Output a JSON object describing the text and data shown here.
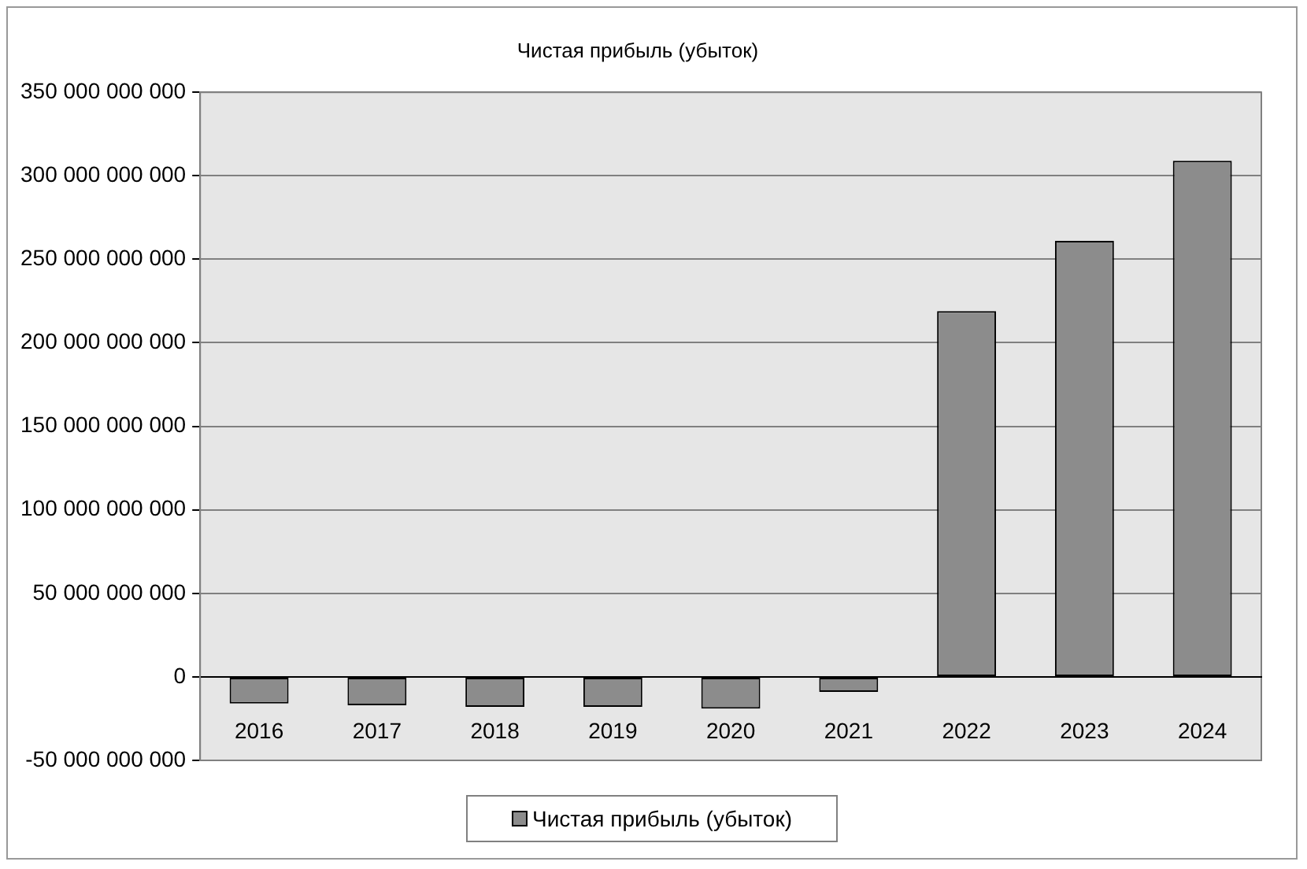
{
  "chart_data": {
    "type": "bar",
    "title": "Чистая прибыль (убыток)",
    "categories": [
      "2016",
      "2017",
      "2018",
      "2019",
      "2020",
      "2021",
      "2022",
      "2023",
      "2024"
    ],
    "series": [
      {
        "name": "Чистая прибыль (убыток)",
        "color": "#8c8c8c",
        "values": [
          -16000000000,
          -17000000000,
          -18000000000,
          -18000000000,
          -19000000000,
          -9000000000,
          219000000000,
          261000000000,
          309000000000
        ]
      }
    ],
    "ylim": [
      -50000000000,
      350000000000
    ],
    "yticks": [
      {
        "value": -50000000000,
        "label": "-50 000 000 000"
      },
      {
        "value": 0,
        "label": "0"
      },
      {
        "value": 50000000000,
        "label": "50 000 000 000"
      },
      {
        "value": 100000000000,
        "label": "100 000 000 000"
      },
      {
        "value": 150000000000,
        "label": "150 000 000 000"
      },
      {
        "value": 200000000000,
        "label": "200 000 000 000"
      },
      {
        "value": 250000000000,
        "label": "250 000 000 000"
      },
      {
        "value": 300000000000,
        "label": "300 000 000 000"
      },
      {
        "value": 350000000000,
        "label": "350 000 000 000"
      }
    ],
    "grid": "y",
    "legend": "bottom"
  }
}
